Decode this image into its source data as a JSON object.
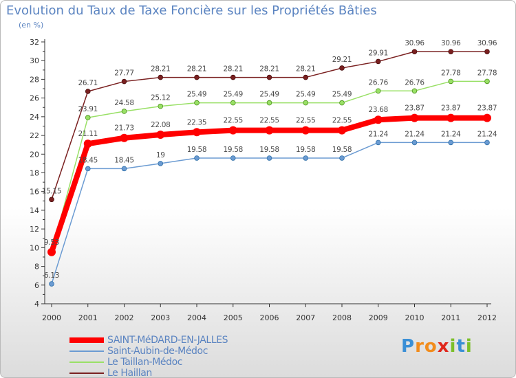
{
  "title": "Evolution du Taux de Taxe Foncière sur les Propriétés Bâties",
  "subtitle": "(en %)",
  "chart_data": {
    "type": "line",
    "title": "Evolution du Taux de Taxe Foncière sur les Propriétés Bâties",
    "ylabel": "(en %)",
    "xlabel": "",
    "ylim": [
      4,
      32
    ],
    "yticks": [
      4,
      6,
      8,
      10,
      12,
      14,
      16,
      18,
      20,
      22,
      24,
      26,
      28,
      30,
      32
    ],
    "categories": [
      "2000",
      "2001",
      "2002",
      "2003",
      "2004",
      "2005",
      "2006",
      "2007",
      "2008",
      "2009",
      "2010",
      "2011",
      "2012"
    ],
    "grid": false,
    "legend_position": "bottom-left",
    "series": [
      {
        "name": "SAINT-MéDARD-EN-JALLES",
        "color": "#ff0000",
        "values": [
          9.53,
          21.11,
          21.73,
          22.08,
          22.35,
          22.55,
          22.55,
          22.55,
          22.55,
          23.68,
          23.87,
          23.87,
          23.87
        ],
        "labels": [
          "9.53",
          "21.11",
          "21.73",
          "22.08",
          "22.35",
          "22.55",
          "22.55",
          "22.55",
          "22.55",
          "23.68",
          "23.87",
          "23.87",
          "23.87"
        ]
      },
      {
        "name": "Saint-Aubin-de-Médoc",
        "color": "#6b9bd2",
        "values": [
          6.13,
          18.45,
          18.45,
          19,
          19.58,
          19.58,
          19.58,
          19.58,
          19.58,
          21.24,
          21.24,
          21.24,
          21.24
        ],
        "labels": [
          "6.13",
          "18.45",
          "18.45",
          "19",
          "19.58",
          "19.58",
          "19.58",
          "19.58",
          "19.58",
          "21.24",
          "21.24",
          "21.24",
          "21.24"
        ]
      },
      {
        "name": "Le Taillan-Médoc",
        "color": "#99e066",
        "values": [
          9.53,
          23.91,
          24.58,
          25.12,
          25.49,
          25.49,
          25.49,
          25.49,
          25.49,
          26.76,
          26.76,
          27.78,
          27.78
        ],
        "labels": [
          "",
          "23.91",
          "24.58",
          "25.12",
          "25.49",
          "25.49",
          "25.49",
          "25.49",
          "25.49",
          "26.76",
          "26.76",
          "27.78",
          "27.78"
        ]
      },
      {
        "name": "Le Haillan",
        "color": "#7a2020",
        "values": [
          15.15,
          26.71,
          27.77,
          28.21,
          28.21,
          28.21,
          28.21,
          28.21,
          29.21,
          29.91,
          30.96,
          30.96,
          30.96
        ],
        "labels": [
          "15.15",
          "26.71",
          "27.77",
          "28.21",
          "28.21",
          "28.21",
          "28.21",
          "28.21",
          "29.21",
          "29.91",
          "30.96",
          "30.96",
          "30.96"
        ]
      }
    ]
  },
  "legend": [
    {
      "label": "SAINT-MéDARD-EN-JALLES",
      "color": "#ff0000"
    },
    {
      "label": "Saint-Aubin-de-Médoc",
      "color": "#6b9bd2"
    },
    {
      "label": "Le Taillan-Médoc",
      "color": "#99e066"
    },
    {
      "label": "Le Haillan",
      "color": "#7a2020"
    }
  ],
  "logo": {
    "letters": [
      "P",
      "r",
      "o",
      "x",
      "i",
      "t",
      "i"
    ],
    "colors": [
      "#3a8fd6",
      "#f28c1c",
      "#f28c1c",
      "#e0261b",
      "#7bbf2a",
      "#3a8fd6",
      "#7bbf2a"
    ]
  }
}
